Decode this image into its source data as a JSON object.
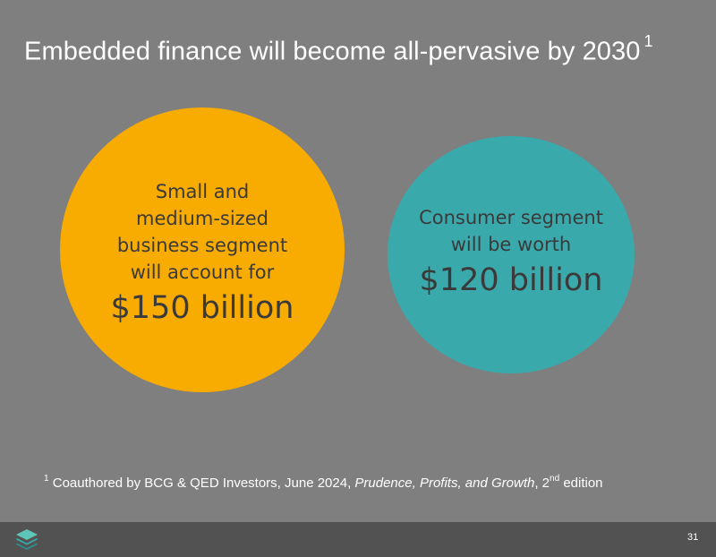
{
  "slide": {
    "title": "Embedded finance will become all-pervasive by 2030",
    "title_sup": "1",
    "smb_circle": {
      "lines": [
        "Small and",
        "medium-sized",
        "business segment",
        "will account for"
      ],
      "amount": "$150 billion",
      "color": "#f8ab00"
    },
    "consumer_circle": {
      "lines": [
        "Consumer segment",
        "will be worth"
      ],
      "amount": "$120 billion",
      "color": "#3aa9ac"
    },
    "footnote": {
      "marker": "1",
      "text_prefix": " Coauthored by BCG & QED Investors, June 2024, ",
      "title_italic": "Prudence, Profits, and Growth",
      "text_mid": ", 2",
      "edition_sup": "nd",
      "text_suffix": " edition"
    }
  },
  "footer": {
    "logo_icon": "stacked-layers-icon",
    "page_number": "31"
  },
  "colors": {
    "background": "#7f7f7f",
    "footer_bar": "#525252",
    "logo": "#3aa9ac"
  }
}
